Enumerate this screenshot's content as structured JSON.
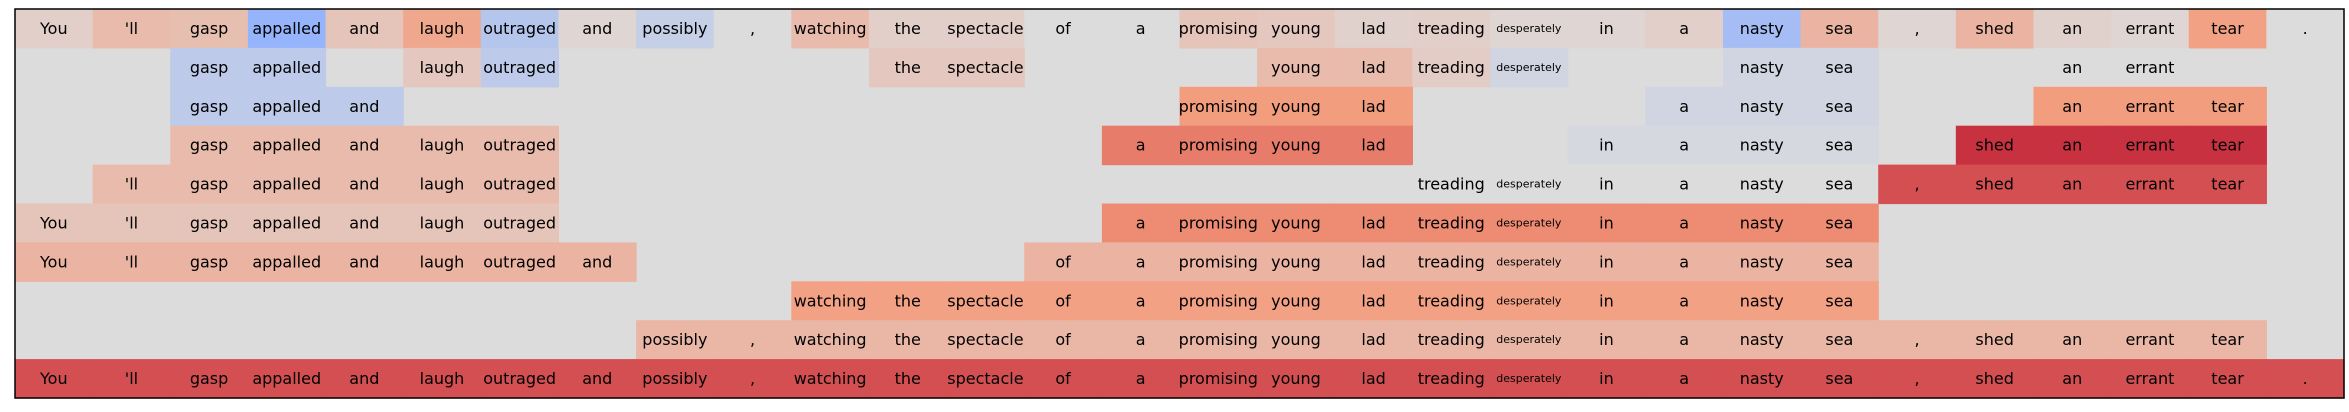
{
  "chart_data": {
    "type": "heatmap",
    "title": "",
    "xlabel": "",
    "ylabel": "",
    "grid": false,
    "legend": "none",
    "colormap": "coolwarm",
    "value_range": [
      -1,
      1
    ],
    "tokens": [
      "You",
      "'ll",
      "gasp",
      "appalled",
      "and",
      "laugh",
      "outraged",
      "and",
      "possibly",
      ",",
      "watching",
      "the",
      "spectacle",
      "of",
      "a",
      "promising",
      "young",
      "lad",
      "treading",
      "desperately",
      "in",
      "a",
      "nasty",
      "sea",
      ",",
      "shed",
      "an",
      "errant",
      "tear",
      "."
    ],
    "rows": [
      [
        0.1,
        0.25,
        0.22,
        -0.45,
        0.18,
        0.4,
        -0.25,
        0.05,
        -0.15,
        0.0,
        0.25,
        0.1,
        0.1,
        0.0,
        0.0,
        0.18,
        0.15,
        0.08,
        0.1,
        0.05,
        0.05,
        0.1,
        -0.35,
        0.3,
        0.05,
        0.3,
        0.08,
        0.05,
        0.45,
        0.0
      ],
      [
        null,
        null,
        -0.2,
        -0.2,
        null,
        0.15,
        -0.2,
        null,
        null,
        null,
        null,
        0.15,
        0.15,
        null,
        null,
        null,
        0.25,
        0.25,
        0.12,
        -0.08,
        null,
        null,
        -0.08,
        -0.08,
        null,
        null,
        0.0,
        0.0,
        null,
        null
      ],
      [
        null,
        null,
        -0.2,
        -0.2,
        -0.2,
        null,
        null,
        null,
        null,
        null,
        null,
        null,
        null,
        null,
        null,
        0.48,
        0.48,
        0.48,
        null,
        null,
        null,
        -0.08,
        -0.08,
        -0.08,
        null,
        null,
        0.48,
        0.48,
        0.48,
        null
      ],
      [
        null,
        null,
        0.25,
        0.25,
        0.25,
        0.25,
        0.25,
        null,
        null,
        null,
        null,
        null,
        null,
        null,
        0.6,
        0.6,
        0.6,
        0.6,
        null,
        null,
        -0.05,
        -0.05,
        -0.05,
        -0.05,
        null,
        0.85,
        0.85,
        0.85,
        0.85,
        null
      ],
      [
        null,
        0.25,
        0.25,
        0.25,
        0.25,
        0.25,
        0.25,
        null,
        null,
        null,
        null,
        null,
        null,
        null,
        null,
        null,
        null,
        null,
        0.0,
        0.0,
        0.0,
        0.0,
        0.0,
        0.0,
        0.75,
        0.75,
        0.75,
        0.75,
        0.75,
        null
      ],
      [
        0.18,
        0.18,
        0.18,
        0.18,
        0.18,
        0.18,
        0.18,
        null,
        null,
        null,
        null,
        null,
        null,
        null,
        0.55,
        0.55,
        0.55,
        0.55,
        0.55,
        0.55,
        0.55,
        0.55,
        0.55,
        0.55,
        null,
        null,
        null,
        null,
        null,
        null
      ],
      [
        0.3,
        0.3,
        0.3,
        0.3,
        0.3,
        0.3,
        0.3,
        0.3,
        null,
        null,
        null,
        null,
        null,
        0.3,
        0.3,
        0.3,
        0.3,
        0.3,
        0.3,
        0.3,
        0.3,
        0.3,
        0.3,
        0.3,
        null,
        null,
        null,
        null,
        null,
        null
      ],
      [
        null,
        null,
        null,
        null,
        null,
        null,
        null,
        null,
        null,
        null,
        0.45,
        0.45,
        0.45,
        0.45,
        0.45,
        0.45,
        0.45,
        0.45,
        0.45,
        0.45,
        0.45,
        0.45,
        0.45,
        0.45,
        null,
        null,
        null,
        null,
        null,
        null
      ],
      [
        null,
        null,
        null,
        null,
        null,
        null,
        null,
        null,
        0.28,
        0.28,
        0.28,
        0.28,
        0.28,
        0.28,
        0.28,
        0.28,
        0.28,
        0.28,
        0.28,
        0.28,
        0.28,
        0.28,
        0.28,
        0.28,
        0.28,
        0.28,
        0.28,
        0.28,
        0.28,
        null
      ],
      [
        0.75,
        0.75,
        0.75,
        0.75,
        0.75,
        0.75,
        0.75,
        0.75,
        0.75,
        0.75,
        0.75,
        0.75,
        0.75,
        0.75,
        0.75,
        0.75,
        0.75,
        0.75,
        0.75,
        0.75,
        0.75,
        0.75,
        0.75,
        0.75,
        0.75,
        0.75,
        0.75,
        0.75,
        0.75,
        0.75
      ]
    ]
  }
}
